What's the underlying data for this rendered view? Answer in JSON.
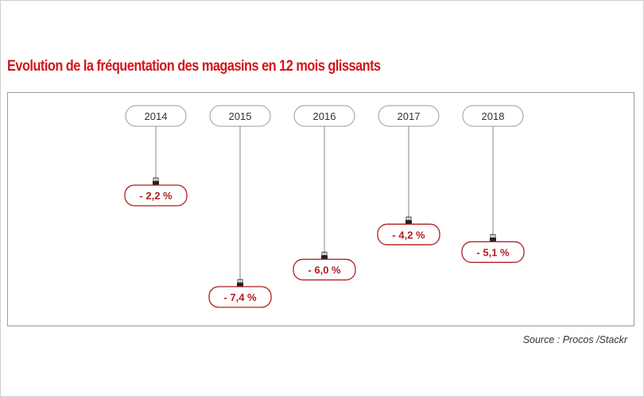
{
  "title": "Evolution de la fréquentation des magasins en 12 mois glissants",
  "source": "Source : Procos /Stackr",
  "colors": {
    "title": "#d3141b",
    "value_border": "#b01e22",
    "value_text": "#b01e22",
    "year_border": "#9a9a9a",
    "string": "#9a9a9a"
  },
  "chart_data": {
    "type": "bar",
    "categories": [
      "2014",
      "2015",
      "2016",
      "2017",
      "2018"
    ],
    "values": [
      -2.2,
      -7.4,
      -6.0,
      -4.2,
      -5.1
    ],
    "value_labels": [
      "- 2,2 %",
      "- 7,4 %",
      "- 6,0 %",
      "- 4,2 %",
      "- 5,1 %"
    ],
    "unit": "%",
    "title": "Evolution de la fréquentation des magasins en 12 mois glissants"
  }
}
